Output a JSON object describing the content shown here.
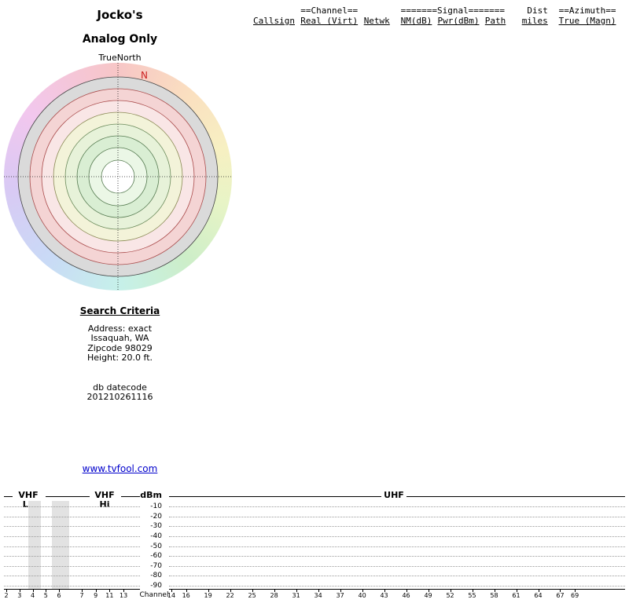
{
  "report": {
    "title_line1": "Jocko's",
    "title_line2": "Analog Only",
    "link": "www.tvfool.com"
  },
  "table": {
    "header_groups": [
      "==Channel==",
      "=======Signal=======",
      "Dist",
      "==Azimuth=="
    ],
    "columns": [
      "Callsign",
      "Real (Virt)",
      "Netwk",
      "NM(dB)",
      "Pwr(dBm)",
      "Path",
      "miles",
      "True (Magn)"
    ],
    "rows": []
  },
  "search_criteria": {
    "heading": "Search Criteria",
    "lines": [
      "Address: exact",
      "Issaquah, WA",
      "Zipcode 98029",
      "Height: 20.0 ft."
    ],
    "datecode_label": "db datecode",
    "datecode": "201210261116"
  },
  "chart_data": [
    {
      "type": "radar",
      "title": "Jocko's Analog Only",
      "north_label": "TrueNorth",
      "magnetic_north_label": "N",
      "magnetic_north_color": "#cc2222",
      "stations": [],
      "azimuth_colors": [
        "#f7c6c6 0deg",
        "#fadfc0 40deg",
        "#f7f0c2 75deg",
        "#e7f4c6 105deg",
        "#cdeec8 140deg",
        "#c6f0ea 180deg",
        "#c9daf6 220deg",
        "#d9c9f4 265deg",
        "#f2c7ee 305deg",
        "#f7c6c6 360deg"
      ],
      "rings": [
        {
          "r": 127,
          "fill": "#dadada",
          "stroke": "#444444"
        },
        {
          "r": 112,
          "fill": "#f4d4d4",
          "stroke": "#aa4c4c"
        },
        {
          "r": 97,
          "fill": "#f9e6e6",
          "stroke": "#aa4c4c"
        },
        {
          "r": 82,
          "fill": "#f3f3d9",
          "stroke": "#8a8a55"
        },
        {
          "r": 67,
          "fill": "#e7f2d9",
          "stroke": "#6a8a5a"
        },
        {
          "r": 52,
          "fill": "#d9eed3",
          "stroke": "#557a50"
        },
        {
          "r": 37,
          "fill": "#ebf7e6",
          "stroke": "#557a50"
        },
        {
          "r": 21,
          "fill": "#ffffff",
          "stroke": "#557a50"
        }
      ]
    },
    {
      "type": "bar",
      "title": "",
      "xlabel": "Channel",
      "ylabel": "dBm",
      "yticks": [
        -10,
        -20,
        -30,
        -40,
        -50,
        -60,
        -70,
        -80,
        -90
      ],
      "ylim": [
        -95,
        -5
      ],
      "sections": [
        {
          "label": "VHF Lo",
          "channels": [
            2,
            3,
            4,
            5,
            6
          ]
        },
        {
          "label": "VHF Hi",
          "channels": [
            7,
            9,
            11,
            13
          ]
        },
        {
          "label": "UHF",
          "channels": [
            14,
            16,
            19,
            22,
            25,
            28,
            31,
            34,
            37,
            40,
            43,
            46,
            49,
            52,
            55,
            58,
            61,
            64,
            67,
            69
          ]
        }
      ],
      "bars": [],
      "shaded_bands": [
        [
          3.7,
          4.65
        ],
        [
          5.45,
          6.8
        ]
      ],
      "shaded_band_color": "#e2e2e2",
      "grid": true
    }
  ]
}
